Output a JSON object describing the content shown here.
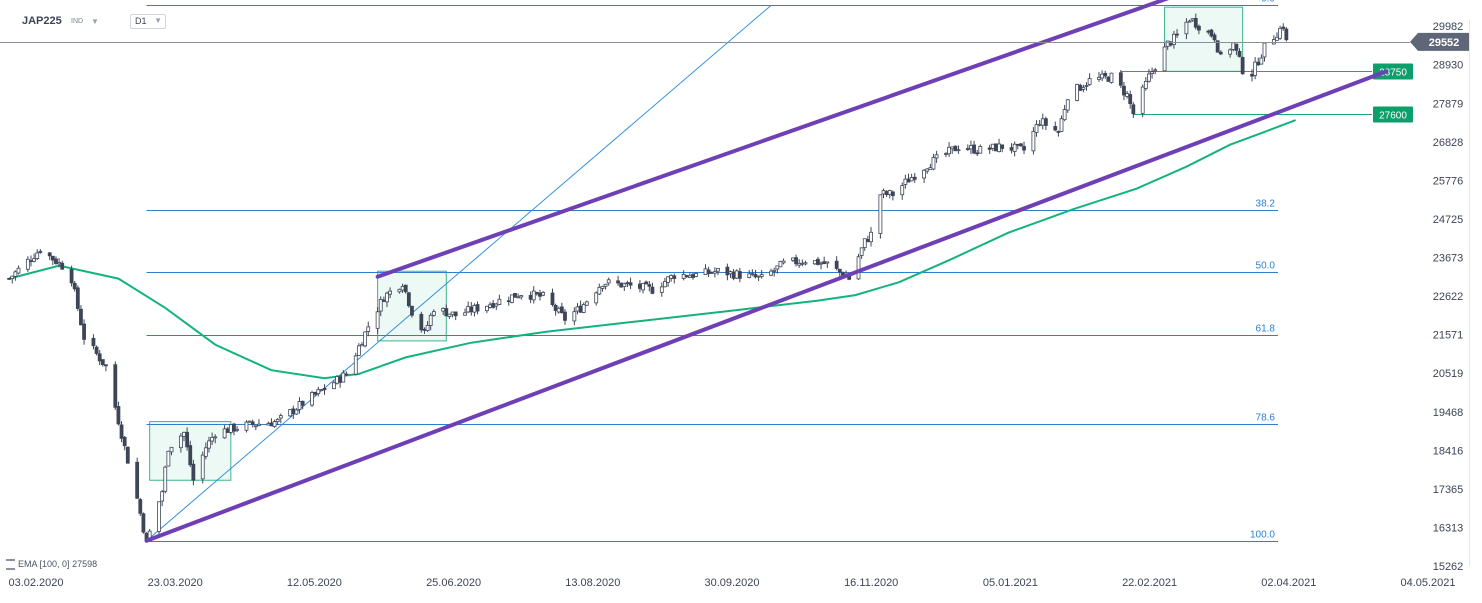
{
  "header": {
    "symbol": "JAP225",
    "symbol_sub": "IND",
    "timeframe": "D1"
  },
  "indicator_legend": {
    "label": "EMA",
    "params": "[100, 0]",
    "value": "27598"
  },
  "colors": {
    "candle_up": "#ffffff",
    "candle_down": "#3d4557",
    "ema": "#14b37d",
    "channel": "#6e3fb5",
    "fib": "#2f7fcf",
    "level_badge": "#0c9e6b",
    "price_badge": "#5e6678"
  },
  "chart_data": {
    "type": "candlestick",
    "x_tick_labels": [
      "03.02.2020",
      "23.03.2020",
      "12.05.2020",
      "25.06.2020",
      "13.08.2020",
      "30.09.2020",
      "16.11.2020",
      "05.01.2021",
      "22.02.2021",
      "02.04.2021",
      "04.05.2021"
    ],
    "x_range": [
      "2020-02-03",
      "2021-05-04"
    ],
    "y_tick_labels": [
      "29982",
      "28930",
      "27879",
      "26828",
      "25776",
      "24725",
      "23673",
      "22622",
      "21571",
      "20519",
      "19468",
      "18416",
      "17365",
      "16313",
      "15262"
    ],
    "y_range": [
      15262,
      30450
    ],
    "current_price": "29552",
    "closes": [
      {
        "d": "2020-02-04",
        "c": 23100
      },
      {
        "d": "2020-02-14",
        "c": 23900
      },
      {
        "d": "2020-02-21",
        "c": 23450
      },
      {
        "d": "2020-02-24",
        "c": 23100
      },
      {
        "d": "2020-02-28",
        "c": 21500
      },
      {
        "d": "2020-03-06",
        "c": 20700
      },
      {
        "d": "2020-03-12",
        "c": 18500
      },
      {
        "d": "2020-03-16",
        "c": 17100
      },
      {
        "d": "2020-03-19",
        "c": 15900
      },
      {
        "d": "2020-03-24",
        "c": 17300
      },
      {
        "d": "2020-03-26",
        "c": 18500
      },
      {
        "d": "2020-03-31",
        "c": 18900
      },
      {
        "d": "2020-04-03",
        "c": 17600
      },
      {
        "d": "2020-04-07",
        "c": 18500
      },
      {
        "d": "2020-04-10",
        "c": 18900
      },
      {
        "d": "2020-04-20",
        "c": 19100
      },
      {
        "d": "2020-04-30",
        "c": 19200
      },
      {
        "d": "2020-05-08",
        "c": 19700
      },
      {
        "d": "2020-05-15",
        "c": 20100
      },
      {
        "d": "2020-05-22",
        "c": 20500
      },
      {
        "d": "2020-05-29",
        "c": 21800
      },
      {
        "d": "2020-06-03",
        "c": 22600
      },
      {
        "d": "2020-06-09",
        "c": 23000
      },
      {
        "d": "2020-06-12",
        "c": 22200
      },
      {
        "d": "2020-06-16",
        "c": 21600
      },
      {
        "d": "2020-06-19",
        "c": 22300
      },
      {
        "d": "2020-06-26",
        "c": 22100
      },
      {
        "d": "2020-07-03",
        "c": 22300
      },
      {
        "d": "2020-07-10",
        "c": 22500
      },
      {
        "d": "2020-07-17",
        "c": 22700
      },
      {
        "d": "2020-07-24",
        "c": 22600
      },
      {
        "d": "2020-07-31",
        "c": 22000
      },
      {
        "d": "2020-08-05",
        "c": 22300
      },
      {
        "d": "2020-08-12",
        "c": 23000
      },
      {
        "d": "2020-08-21",
        "c": 22900
      },
      {
        "d": "2020-08-28",
        "c": 22800
      },
      {
        "d": "2020-09-04",
        "c": 23200
      },
      {
        "d": "2020-09-11",
        "c": 23200
      },
      {
        "d": "2020-09-18",
        "c": 23300
      },
      {
        "d": "2020-09-25",
        "c": 23200
      },
      {
        "d": "2020-10-02",
        "c": 23100
      },
      {
        "d": "2020-10-09",
        "c": 23500
      },
      {
        "d": "2020-10-16",
        "c": 23600
      },
      {
        "d": "2020-10-23",
        "c": 23500
      },
      {
        "d": "2020-10-30",
        "c": 23100
      },
      {
        "d": "2020-11-04",
        "c": 24100
      },
      {
        "d": "2020-11-06",
        "c": 24300
      },
      {
        "d": "2020-11-09",
        "c": 25400
      },
      {
        "d": "2020-11-13",
        "c": 25400
      },
      {
        "d": "2020-11-18",
        "c": 25800
      },
      {
        "d": "2020-11-24",
        "c": 26200
      },
      {
        "d": "2020-11-30",
        "c": 26500
      },
      {
        "d": "2020-12-04",
        "c": 26700
      },
      {
        "d": "2020-12-11",
        "c": 26600
      },
      {
        "d": "2020-12-18",
        "c": 26700
      },
      {
        "d": "2020-12-25",
        "c": 26600
      },
      {
        "d": "2020-12-30",
        "c": 27400
      },
      {
        "d": "2021-01-05",
        "c": 27100
      },
      {
        "d": "2021-01-08",
        "c": 28100
      },
      {
        "d": "2021-01-15",
        "c": 28500
      },
      {
        "d": "2021-01-22",
        "c": 28600
      },
      {
        "d": "2021-01-27",
        "c": 28100
      },
      {
        "d": "2021-01-29",
        "c": 27600
      },
      {
        "d": "2021-02-03",
        "c": 28600
      },
      {
        "d": "2021-02-09",
        "c": 29500
      },
      {
        "d": "2021-02-12",
        "c": 29700
      },
      {
        "d": "2021-02-16",
        "c": 30200
      },
      {
        "d": "2021-02-19",
        "c": 30000
      },
      {
        "d": "2021-02-24",
        "c": 29700
      },
      {
        "d": "2021-02-26",
        "c": 29100
      },
      {
        "d": "2021-03-02",
        "c": 29500
      },
      {
        "d": "2021-03-05",
        "c": 28800
      },
      {
        "d": "2021-03-08",
        "c": 28700
      },
      {
        "d": "2021-03-12",
        "c": 29400
      },
      {
        "d": "2021-03-16",
        "c": 29800
      },
      {
        "d": "2021-03-18",
        "c": 30000
      },
      {
        "d": "2021-03-19",
        "c": 29552
      }
    ],
    "ema_100": [
      {
        "d": "2020-02-04",
        "c": 23100
      },
      {
        "d": "2020-02-20",
        "c": 23450
      },
      {
        "d": "2020-03-10",
        "c": 23100
      },
      {
        "d": "2020-03-25",
        "c": 22300
      },
      {
        "d": "2020-04-10",
        "c": 21300
      },
      {
        "d": "2020-04-28",
        "c": 20600
      },
      {
        "d": "2020-05-15",
        "c": 20380
      },
      {
        "d": "2020-05-26",
        "c": 20500
      },
      {
        "d": "2020-06-10",
        "c": 20950
      },
      {
        "d": "2020-07-01",
        "c": 21350
      },
      {
        "d": "2020-07-25",
        "c": 21650
      },
      {
        "d": "2020-08-25",
        "c": 21950
      },
      {
        "d": "2020-09-25",
        "c": 22250
      },
      {
        "d": "2020-10-20",
        "c": 22500
      },
      {
        "d": "2020-11-01",
        "c": 22650
      },
      {
        "d": "2020-11-15",
        "c": 23000
      },
      {
        "d": "2020-12-01",
        "c": 23600
      },
      {
        "d": "2020-12-20",
        "c": 24350
      },
      {
        "d": "2021-01-10",
        "c": 25000
      },
      {
        "d": "2021-01-30",
        "c": 25550
      },
      {
        "d": "2021-02-15",
        "c": 26150
      },
      {
        "d": "2021-03-01",
        "c": 26750
      },
      {
        "d": "2021-03-12",
        "c": 27100
      },
      {
        "d": "2021-03-22",
        "c": 27420
      }
    ],
    "fibonacci_levels": [
      {
        "label": "0.0",
        "value": 30550
      },
      {
        "label": "38.2",
        "value": 24960
      },
      {
        "label": "50.0",
        "value": 23280
      },
      {
        "label": "61.8",
        "value": 21560
      },
      {
        "label": "78.6",
        "value": 19130
      },
      {
        "label": "100.0",
        "value": 15950
      }
    ],
    "horizontal_levels": [
      {
        "label": "28750",
        "value": 28750
      },
      {
        "label": "27600",
        "value": 27600
      }
    ],
    "channel_lines": [
      {
        "from": {
          "d": "2020-03-19",
          "c": 15950
        },
        "to": {
          "d": "2021-04-20",
          "c": 28750
        }
      },
      {
        "from": {
          "d": "2020-06-01",
          "c": 23150
        },
        "to": {
          "d": "2021-02-16",
          "c": 30950
        }
      }
    ],
    "trend_line": {
      "from": {
        "d": "2020-03-19",
        "c": 15950
      },
      "to": {
        "d": "2020-10-05",
        "c": 30550
      }
    },
    "boxes": [
      {
        "from": {
          "d": "2020-03-20",
          "c": 19200
        },
        "to": {
          "d": "2020-04-15",
          "c": 17600
        }
      },
      {
        "from": {
          "d": "2020-06-01",
          "c": 23300
        },
        "to": {
          "d": "2020-06-23",
          "c": 21400
        }
      },
      {
        "from": {
          "d": "2021-02-08",
          "c": 30500
        },
        "to": {
          "d": "2021-03-05",
          "c": 28750
        }
      }
    ]
  }
}
